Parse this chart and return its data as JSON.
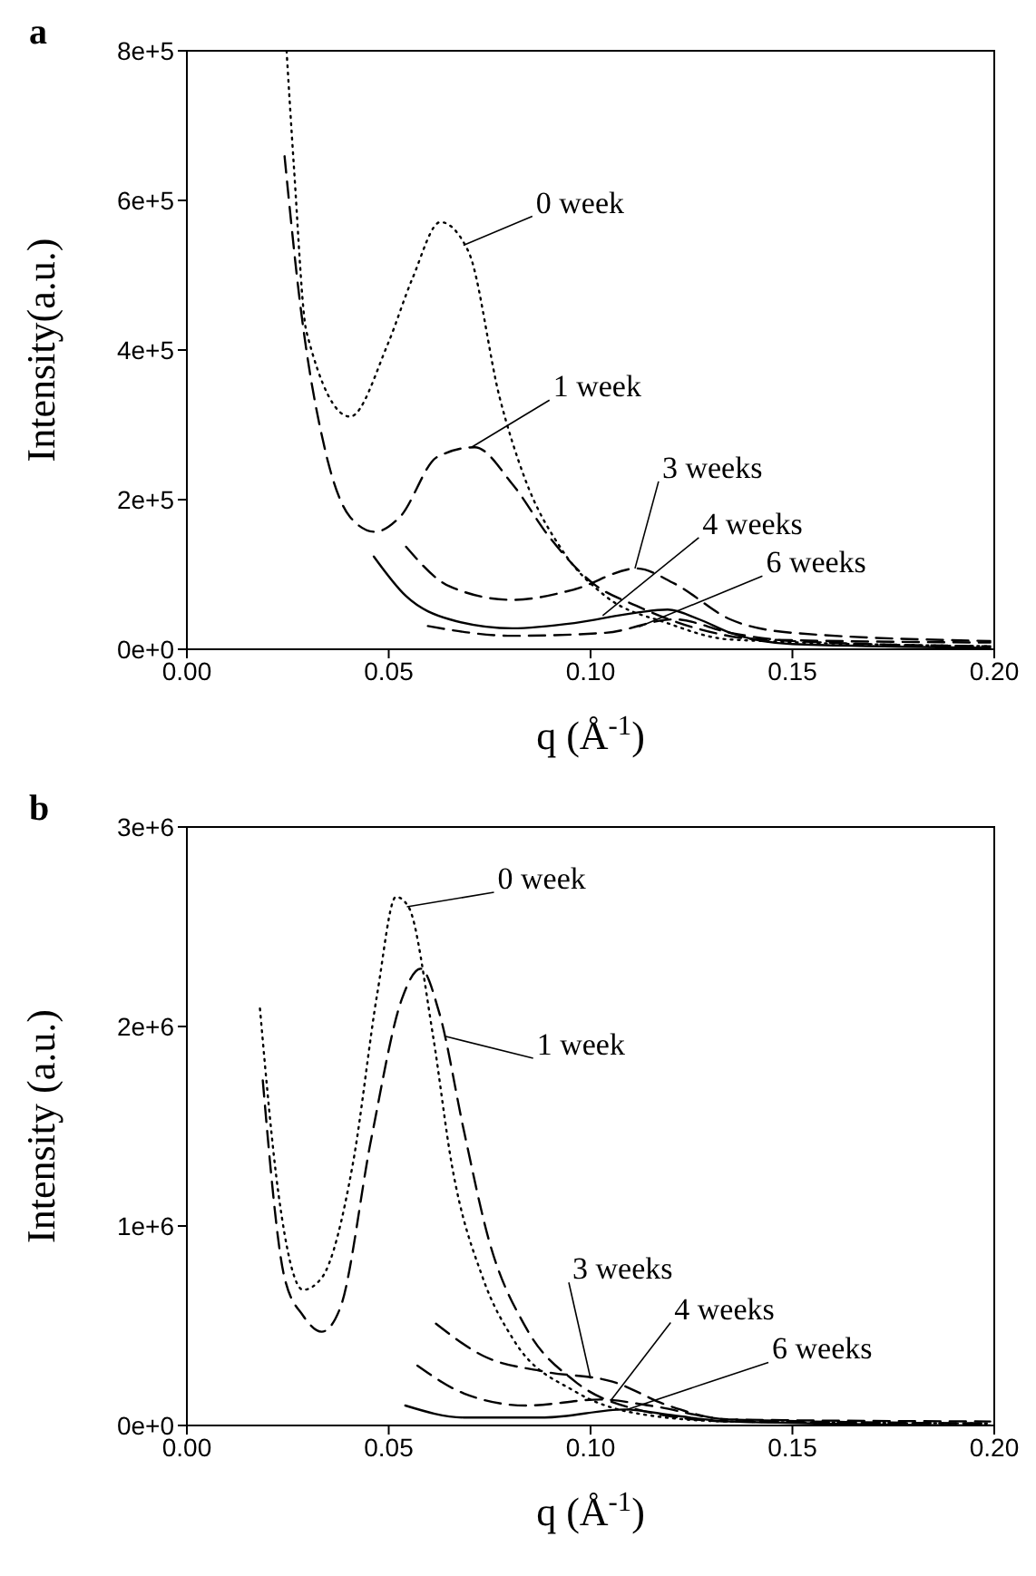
{
  "chart_data": [
    {
      "type": "line",
      "title": "a",
      "xlabel": "q (Å$^{-1}$)",
      "ylabel": "Intensity(a.u.)",
      "xlim": [
        0,
        0.2
      ],
      "xticks": [
        {
          "value": 0,
          "label": "0.00"
        },
        {
          "value": 0.05,
          "label": "0.05"
        },
        {
          "value": 0.1,
          "label": "0.10"
        },
        {
          "value": 0.15,
          "label": "0.15"
        },
        {
          "value": 0.2,
          "label": "0.20"
        }
      ],
      "ylim": [
        0,
        800000
      ],
      "yticks": [
        {
          "value": 0,
          "label": "0e+0"
        },
        {
          "value": 200000,
          "label": "2e+5"
        },
        {
          "value": 400000,
          "label": "4e+5"
        },
        {
          "value": 600000,
          "label": "6e+5"
        },
        {
          "value": 800000,
          "label": "8e+5"
        }
      ],
      "marker": "none",
      "series": [
        {
          "color": "#000000",
          "line_style": "dotted",
          "x": [
            0.0247,
            0.0265,
            0.0296,
            0.0404,
            0.0497,
            0.0559,
            0.0628,
            0.0698,
            0.0775,
            0.0836,
            0.0929,
            0.1037,
            0.119,
            0.1346,
            0.199
          ],
          "values": [
            800000,
            646000,
            425000,
            311000,
            407000,
            496000,
            571000,
            531000,
            336000,
            230000,
            133000,
            71000,
            35000,
            13000,
            4000
          ]
        },
        {
          "color": "#000000",
          "line_style": "dashed",
          "x": [
            0.0242,
            0.0281,
            0.0343,
            0.0404,
            0.0466,
            0.0528,
            0.062,
            0.0713,
            0.0806,
            0.0898,
            0.1006,
            0.1114,
            0.1269,
            0.1423,
            0.199
          ],
          "values": [
            659000,
            460000,
            265000,
            177000,
            157000,
            177000,
            257000,
            270000,
            221000,
            150000,
            88000,
            58000,
            27000,
            13000,
            9000
          ]
        },
        {
          "color": "#000000",
          "line_style": "dashed",
          "x": [
            0.0543,
            0.0651,
            0.0806,
            0.096,
            0.1114,
            0.1207,
            0.1346,
            0.15,
            0.199
          ],
          "values": [
            137000,
            84000,
            66000,
            80000,
            108000,
            88000,
            40000,
            22000,
            11000
          ]
        },
        {
          "color": "#000000",
          "line_style": "solid",
          "x": [
            0.0463,
            0.0543,
            0.0651,
            0.0806,
            0.096,
            0.1114,
            0.1191,
            0.1269,
            0.1346,
            0.15,
            0.199
          ],
          "values": [
            124000,
            71000,
            40000,
            28000,
            35000,
            49000,
            53000,
            40000,
            22000,
            7000,
            2000
          ]
        },
        {
          "color": "#000000",
          "line_style": "dashed",
          "x": [
            0.0597,
            0.0806,
            0.1037,
            0.1207,
            0.1346,
            0.15,
            0.199
          ],
          "values": [
            31000,
            18000,
            22000,
            40000,
            22000,
            11000,
            4000
          ]
        }
      ],
      "annotations": [
        {
          "text": "0 week",
          "x": 0.0685,
          "y": 540000
        },
        {
          "text": "1 week",
          "x": 0.0705,
          "y": 270000
        },
        {
          "text": "3 weeks",
          "x": 0.111,
          "y": 108000
        },
        {
          "text": "4 weeks",
          "x": 0.103,
          "y": 45000
        },
        {
          "text": "6 weeks",
          "x": 0.112,
          "y": 30000
        }
      ]
    },
    {
      "type": "line",
      "title": "b",
      "xlabel": "q (Å$^{-1}$)",
      "ylabel": "Intensity (a.u.)",
      "xlim": [
        0,
        0.2
      ],
      "xticks": [
        {
          "value": 0,
          "label": "0.00"
        },
        {
          "value": 0.05,
          "label": "0.05"
        },
        {
          "value": 0.1,
          "label": "0.10"
        },
        {
          "value": 0.15,
          "label": "0.15"
        },
        {
          "value": 0.2,
          "label": "0.20"
        }
      ],
      "ylim": [
        0,
        3000000
      ],
      "yticks": [
        {
          "value": 0,
          "label": "0e+0"
        },
        {
          "value": 1000000,
          "label": "1e+6"
        },
        {
          "value": 2000000,
          "label": "2e+6"
        },
        {
          "value": 3000000,
          "label": "3e+6"
        }
      ],
      "marker": "none",
      "series": [
        {
          "color": "#000000",
          "line_style": "dotted",
          "x": [
            0.0181,
            0.0227,
            0.0288,
            0.0334,
            0.0411,
            0.0472,
            0.0518,
            0.0549,
            0.061,
            0.0656,
            0.0733,
            0.0809,
            0.0962,
            0.1116,
            0.1345,
            0.199
          ],
          "values": [
            2090000,
            1160000,
            680000,
            740000,
            1310000,
            2170000,
            2650000,
            2600000,
            1950000,
            1310000,
            740000,
            430000,
            170000,
            60000,
            20000,
            10000
          ]
        },
        {
          "color": "#000000",
          "line_style": "dashed",
          "x": [
            0.0188,
            0.0242,
            0.0288,
            0.0334,
            0.038,
            0.0457,
            0.0533,
            0.0579,
            0.0625,
            0.0687,
            0.0748,
            0.084,
            0.0962,
            0.1116,
            0.1345,
            0.199
          ],
          "values": [
            1730000,
            740000,
            550000,
            470000,
            590000,
            1440000,
            2140000,
            2290000,
            2070000,
            1470000,
            930000,
            490000,
            220000,
            80000,
            20000,
            10000
          ]
        },
        {
          "color": "#000000",
          "line_style": "dashed",
          "x": [
            0.0617,
            0.0733,
            0.0886,
            0.1054,
            0.1192,
            0.1345,
            0.199
          ],
          "values": [
            510000,
            350000,
            270000,
            220000,
            100000,
            30000,
            20000
          ]
        },
        {
          "color": "#000000",
          "line_style": "dashed",
          "x": [
            0.0571,
            0.0687,
            0.084,
            0.1024,
            0.1146,
            0.1345,
            0.199
          ],
          "values": [
            300000,
            160000,
            100000,
            130000,
            100000,
            30000,
            10000
          ]
        },
        {
          "color": "#000000",
          "line_style": "solid",
          "x": [
            0.0541,
            0.0687,
            0.0886,
            0.1085,
            0.1207,
            0.1345,
            0.199
          ],
          "values": [
            100000,
            40000,
            40000,
            80000,
            50000,
            20000,
            0
          ]
        }
      ],
      "annotations": [
        {
          "text": "0 week",
          "x": 0.0545,
          "y": 2600000
        },
        {
          "text": "1 week",
          "x": 0.0642,
          "y": 1950000
        },
        {
          "text": "3 weeks",
          "x": 0.1,
          "y": 235000
        },
        {
          "text": "4 weeks",
          "x": 0.105,
          "y": 125000
        },
        {
          "text": "6 weeks",
          "x": 0.109,
          "y": 80000
        }
      ]
    }
  ]
}
